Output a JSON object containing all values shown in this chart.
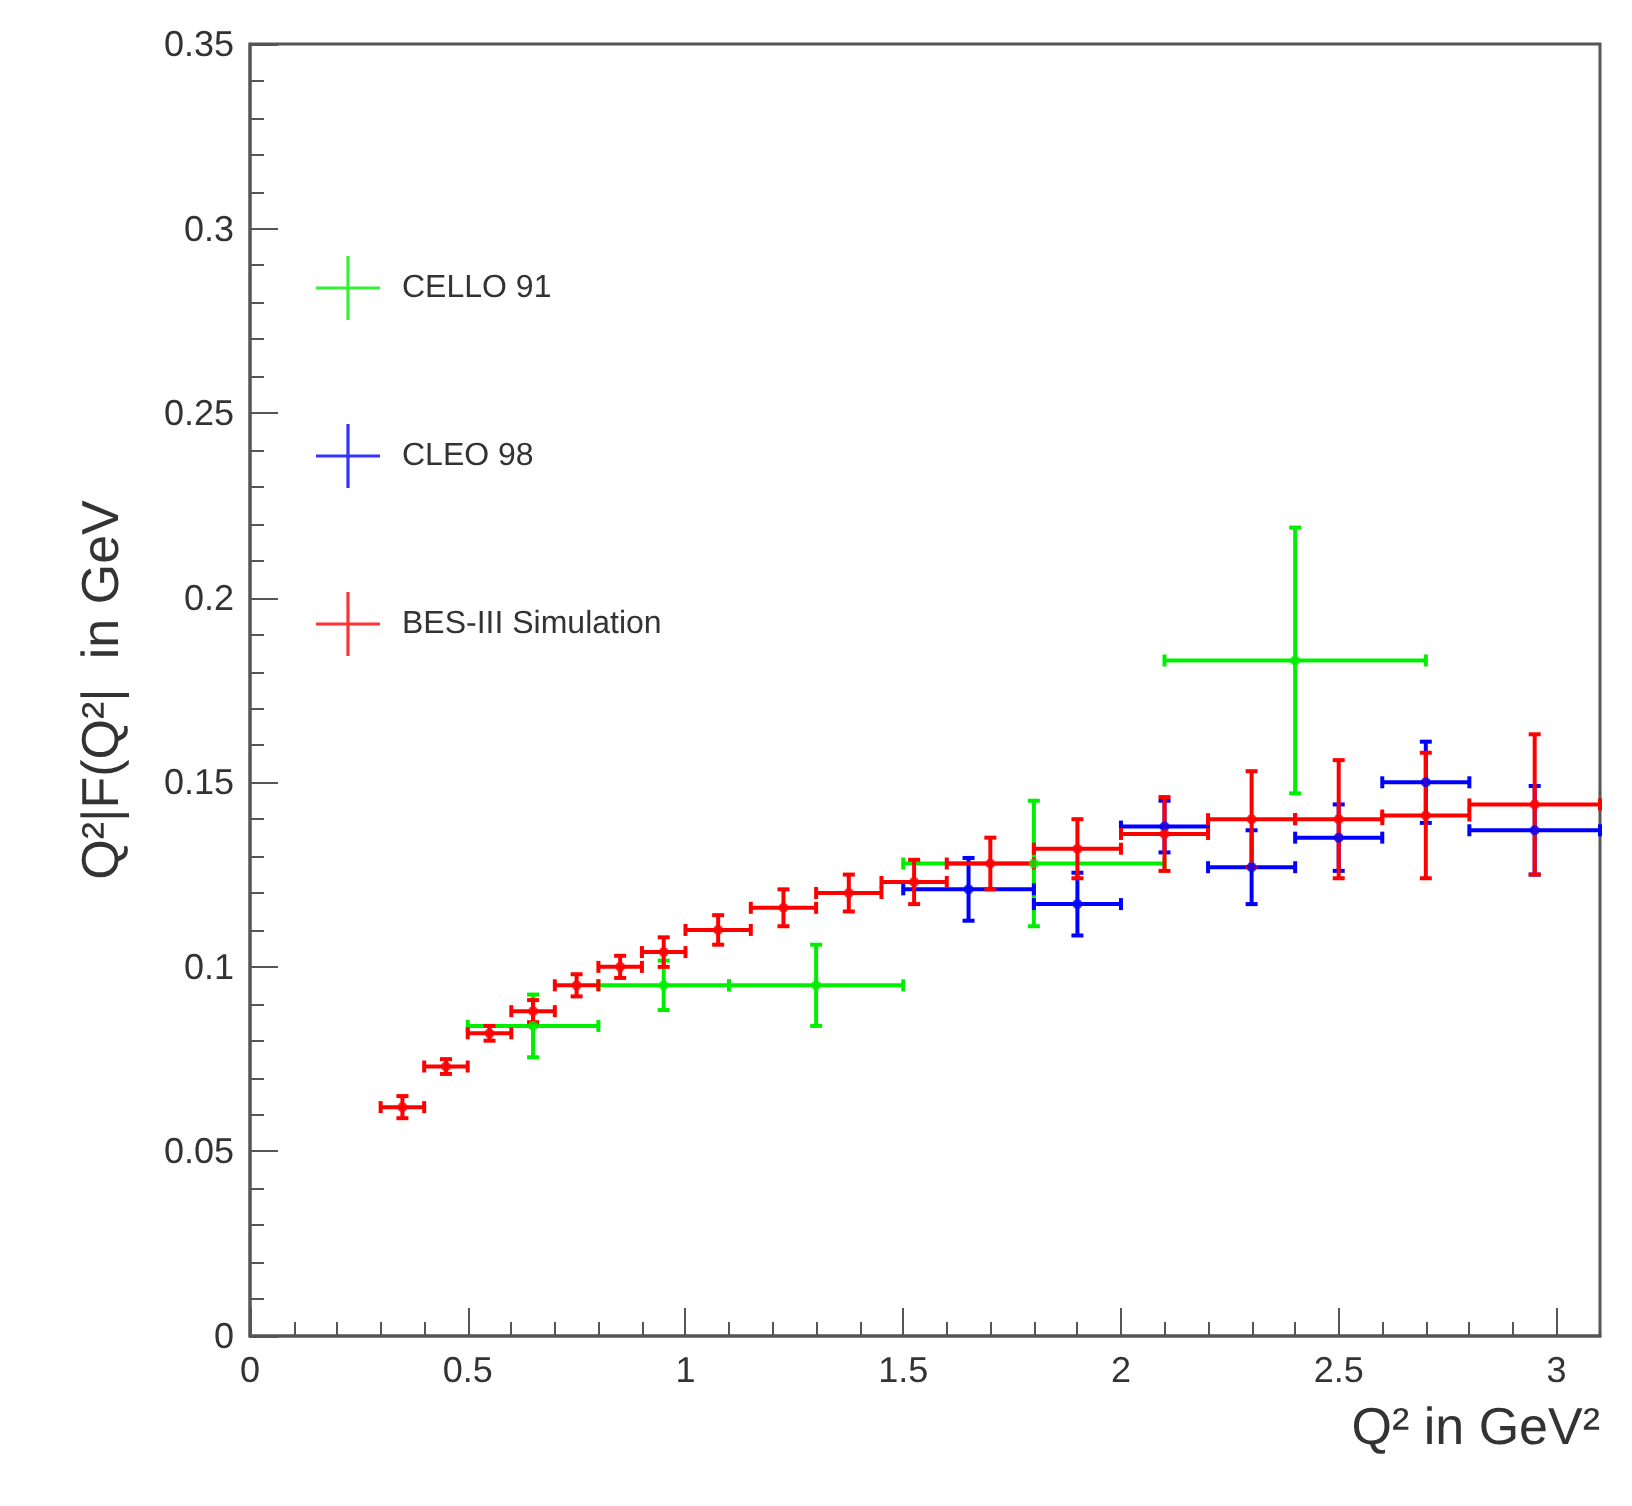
{
  "chart_data": {
    "type": "scatter",
    "xlabel": "Q² in GeV²",
    "ylabel": "Q²|F(Q²|  in GeV",
    "xlim": [
      0,
      3.1
    ],
    "ylim": [
      0,
      0.35
    ],
    "xticks": [
      0,
      0.5,
      1,
      1.5,
      2,
      2.5,
      3
    ],
    "yticks": [
      0,
      0.05,
      0.1,
      0.15,
      0.2,
      0.25,
      0.3,
      0.35
    ],
    "grid": false,
    "legend": "top left",
    "series": [
      {
        "name": "CELLO 91",
        "color": "#00ee00",
        "x": [
          0.65,
          0.95,
          1.3,
          1.8,
          2.4
        ],
        "values": [
          0.084,
          0.095,
          0.095,
          0.128,
          0.183
        ],
        "errors": [
          0.0085,
          0.0067,
          0.011,
          0.017,
          0.036
        ],
        "xerrors": [
          0.15,
          0.15,
          0.2,
          0.3,
          0.3
        ]
      },
      {
        "name": "CLEO 98",
        "color": "#0000ff",
        "x": [
          1.65,
          1.9,
          2.1,
          2.3,
          2.5,
          2.7,
          2.95
        ],
        "values": [
          0.121,
          0.117,
          0.138,
          0.127,
          0.135,
          0.15,
          0.137
        ],
        "errors": [
          0.0085,
          0.0085,
          0.007,
          0.01,
          0.009,
          0.011,
          0.012
        ],
        "xerrors": [
          0.15,
          0.1,
          0.1,
          0.1,
          0.1,
          0.1,
          0.15
        ]
      },
      {
        "name": "BES-III Simulation",
        "color": "#ff0000",
        "x": [
          0.35,
          0.45,
          0.55,
          0.65,
          0.75,
          0.85,
          0.95,
          1.075,
          1.225,
          1.375,
          1.525,
          1.7,
          1.9,
          2.1,
          2.3,
          2.5,
          2.7,
          2.95
        ],
        "values": [
          0.062,
          0.073,
          0.082,
          0.088,
          0.095,
          0.1,
          0.104,
          0.11,
          0.116,
          0.12,
          0.123,
          0.128,
          0.132,
          0.136,
          0.14,
          0.14,
          0.141,
          0.144
        ],
        "errors": [
          0.003,
          0.002,
          0.002,
          0.003,
          0.003,
          0.003,
          0.004,
          0.004,
          0.005,
          0.005,
          0.006,
          0.007,
          0.008,
          0.01,
          0.013,
          0.016,
          0.017,
          0.019
        ],
        "xerrors": [
          0.05,
          0.05,
          0.05,
          0.05,
          0.05,
          0.05,
          0.05,
          0.075,
          0.075,
          0.075,
          0.075,
          0.1,
          0.1,
          0.1,
          0.1,
          0.1,
          0.1,
          0.15
        ]
      }
    ]
  }
}
